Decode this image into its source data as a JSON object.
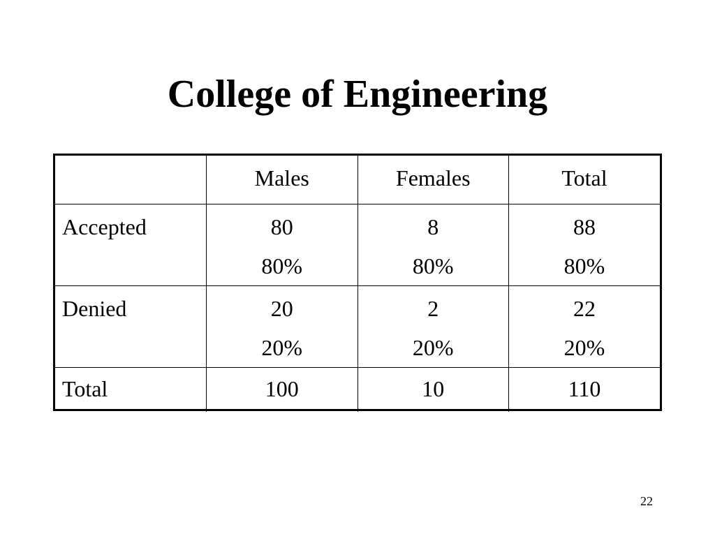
{
  "slide": {
    "title": "College of Engineering",
    "page_number": "22"
  },
  "table": {
    "columns": [
      "",
      "Males",
      "Females",
      "Total"
    ],
    "rows": [
      {
        "label": "Accepted",
        "cells": [
          {
            "count": "80",
            "percent": "80%"
          },
          {
            "count": "8",
            "percent": "80%"
          },
          {
            "count": "88",
            "percent": "80%"
          }
        ]
      },
      {
        "label": "Denied",
        "cells": [
          {
            "count": "20",
            "percent": "20%"
          },
          {
            "count": "2",
            "percent": "20%"
          },
          {
            "count": "22",
            "percent": "20%"
          }
        ]
      },
      {
        "label": "Total",
        "cells": [
          {
            "count": "100"
          },
          {
            "count": "10"
          },
          {
            "count": "110"
          }
        ]
      }
    ]
  }
}
